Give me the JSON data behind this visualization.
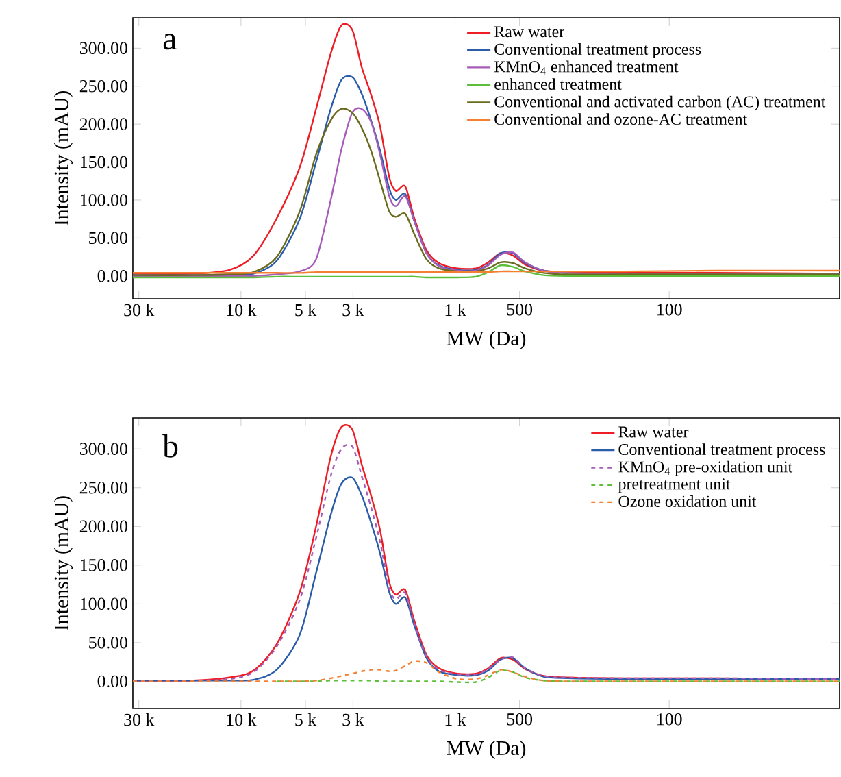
{
  "chart_data": [
    {
      "type": "line",
      "xlabel": "MW (Da)",
      "ylabel": "Intensity (mAU)",
      "annotations": [
        "a"
      ],
      "legend": "top right",
      "log": "x",
      "x": [
        32000,
        16700,
        11300,
        8730,
        6810,
        5320,
        4460,
        3810,
        3400,
        3020,
        2730,
        2470,
        2240,
        2030,
        1890,
        1710,
        1550,
        1360,
        1190,
        975,
        800,
        700,
        614,
        537,
        471,
        386,
        297,
        164,
        61,
        16
      ],
      "xlim": [
        32000,
        16
      ],
      "ylim": [
        -30,
        340
      ],
      "xticks": [
        {
          "value": 30000,
          "label": "30 k"
        },
        {
          "value": 10000,
          "label": "10 k"
        },
        {
          "value": 5000,
          "label": "5 k"
        },
        {
          "value": 3000,
          "label": "3 k"
        },
        {
          "value": 1000,
          "label": "1 k"
        },
        500,
        100
      ],
      "yticks": [
        {
          "value": 0,
          "label": "0.00"
        },
        {
          "value": 50,
          "label": "50.00"
        },
        {
          "value": 100,
          "label": "100.00"
        },
        {
          "value": 150,
          "label": "150.00"
        },
        {
          "value": 200,
          "label": "200.00"
        },
        {
          "value": 250,
          "label": "250.00"
        },
        {
          "value": 300,
          "label": "300.00"
        }
      ],
      "series": [
        {
          "name": "Raw water",
          "color": "#ee1c25",
          "values": [
            3,
            3,
            8,
            27,
            76,
            143,
            220,
            293,
            330,
            324,
            275,
            239,
            197,
            130,
            112,
            118,
            76,
            34,
            17,
            10,
            10,
            18,
            30,
            27,
            15,
            7,
            5,
            4,
            4,
            3
          ]
        },
        {
          "name": "Conventional treatment process",
          "color": "#2a5caa",
          "values": [
            1,
            1,
            2,
            3,
            20,
            75,
            150,
            220,
            258,
            262,
            240,
            205,
            165,
            115,
            100,
            108,
            72,
            30,
            14,
            8,
            8,
            15,
            30,
            30,
            17,
            7,
            4,
            null,
            null,
            null
          ]
        },
        {
          "name": "KMnO$_{4}$ enhanced treatment",
          "color": "#a65cb8",
          "values": [
            0,
            0,
            0,
            0,
            2,
            6,
            22,
            100,
            166,
            215,
            220,
            203,
            160,
            105,
            92,
            105,
            72,
            30,
            13,
            7,
            7,
            14,
            28,
            31,
            18,
            7,
            4,
            3,
            3,
            3
          ]
        },
        {
          "name": "enhanced treatment",
          "color": "#5cbf3a",
          "values": [
            -2,
            -2,
            -2,
            -2,
            -1,
            -1,
            -1,
            -1,
            -1,
            -1,
            -1,
            -1,
            -1,
            -1,
            -1,
            -1,
            -1,
            -2,
            -2,
            -2,
            -1,
            5,
            14,
            12,
            6,
            1,
            0,
            0,
            0,
            0
          ]
        },
        {
          "name": "Conventional and activated carbon (AC) treatment",
          "color": "#6b6b1f",
          "values": [
            1,
            1,
            2,
            5,
            25,
            85,
            160,
            205,
            220,
            215,
            195,
            165,
            125,
            85,
            78,
            82,
            55,
            22,
            10,
            6,
            6,
            10,
            18,
            17,
            10,
            4,
            2,
            2,
            2,
            2
          ]
        },
        {
          "name": "Conventional and ozone-AC treatment",
          "color": "#f47f30",
          "values": [
            4,
            4,
            4,
            4,
            4,
            4,
            5,
            5,
            5,
            5,
            5,
            5,
            5,
            5,
            5,
            5,
            5,
            5,
            5,
            5,
            5,
            5,
            6,
            6,
            6,
            6,
            6,
            6,
            7,
            7
          ]
        }
      ]
    },
    {
      "type": "line",
      "xlabel": "MW (Da)",
      "ylabel": "Intensity (mAU)",
      "annotations": [
        "b"
      ],
      "legend": "top right",
      "log": "x",
      "x": [
        32000,
        16700,
        11300,
        8730,
        6810,
        5320,
        4460,
        3810,
        3400,
        3020,
        2730,
        2470,
        2240,
        2030,
        1890,
        1710,
        1550,
        1360,
        1190,
        975,
        800,
        700,
        614,
        537,
        471,
        386,
        297,
        164,
        61,
        16
      ],
      "xlim": [
        32000,
        16
      ],
      "ylim": [
        -35,
        340
      ],
      "xticks": [
        {
          "value": 30000,
          "label": "30 k"
        },
        {
          "value": 10000,
          "label": "10 k"
        },
        {
          "value": 5000,
          "label": "5 k"
        },
        {
          "value": 3000,
          "label": "3 k"
        },
        {
          "value": 1000,
          "label": "1 k"
        },
        500,
        100
      ],
      "yticks": [
        {
          "value": 0,
          "label": "0.00"
        },
        {
          "value": 50,
          "label": "50.00"
        },
        {
          "value": 100,
          "label": "100.00"
        },
        {
          "value": 150,
          "label": "150.00"
        },
        {
          "value": 200,
          "label": "200.00"
        },
        {
          "value": 250,
          "label": "250.00"
        },
        {
          "value": 300,
          "label": "300.00"
        }
      ],
      "series": [
        {
          "name": "Raw water",
          "color": "#ee1c25",
          "values": [
            1,
            1,
            5,
            14,
            48,
            115,
            200,
            290,
            328,
            325,
            280,
            240,
            195,
            128,
            112,
            118,
            78,
            34,
            17,
            10,
            10,
            17,
            30,
            28,
            16,
            7,
            5,
            4,
            4,
            3
          ]
        },
        {
          "name": "Conventional treatment process",
          "color": "#2a5caa",
          "values": [
            1,
            1,
            1,
            2,
            15,
            60,
            140,
            215,
            255,
            263,
            240,
            205,
            165,
            115,
            100,
            108,
            72,
            30,
            13,
            8,
            8,
            14,
            28,
            30,
            17,
            6,
            4,
            3,
            3,
            3
          ]
        },
        {
          "name": "KMnO$_{4}$ pre-oxidation unit",
          "color": "#a65cb8",
          "line_style": "dashed",
          "values": [
            1,
            1,
            3,
            12,
            45,
            105,
            185,
            265,
            300,
            303,
            265,
            225,
            180,
            120,
            106,
            114,
            74,
            32,
            15,
            9,
            9,
            16,
            28,
            31,
            17,
            7,
            5,
            4,
            4,
            3
          ]
        },
        {
          "name": "pretreatment unit",
          "color": "#5cbf3a",
          "line_style": "dashed",
          "values": [
            null,
            null,
            null,
            null,
            0,
            0,
            0,
            1,
            1,
            1,
            1,
            1,
            0,
            0,
            0,
            0,
            0,
            0,
            0,
            -1,
            -1,
            5,
            14,
            12,
            5,
            1,
            0,
            0,
            0,
            0
          ]
        },
        {
          "name": "Ozone oxidation unit",
          "color": "#f47f30",
          "line_style": "dashed",
          "values": [
            0,
            0,
            0,
            0,
            0,
            0,
            1,
            4,
            7,
            10,
            13,
            15,
            15,
            13,
            14,
            20,
            26,
            24,
            12,
            3,
            3,
            8,
            15,
            12,
            6,
            1,
            0,
            0,
            0,
            0
          ]
        }
      ]
    }
  ]
}
